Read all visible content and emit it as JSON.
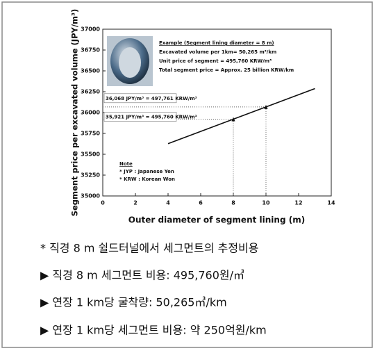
{
  "chart_data": {
    "type": "line",
    "x_label": "Outer diameter of segment lining (m)",
    "y_label": "Segment price per excavated volume (JPY/m³)",
    "series": [
      {
        "color": "#111111",
        "x": [
          4,
          8,
          10,
          13
        ],
        "values": [
          35627,
          35921,
          36068,
          36288
        ]
      }
    ],
    "xlim": [
      0,
      14
    ],
    "xticks": [
      0,
      2,
      4,
      6,
      8,
      10,
      12,
      14
    ],
    "ylim": [
      35000,
      37000
    ],
    "yticks": [
      35000,
      35250,
      35500,
      35750,
      36000,
      36250,
      36500,
      36750,
      37000
    ],
    "annotations": [
      "36,068 JPY/m³ = 497,761 KRW/m³",
      "35,921 JPY/m³ = 495,760 KRW/m³"
    ],
    "inset_title": "Example (Segment lining diameter = 8 m)",
    "inset_lines": [
      "Excavated volume per 1km= 50,265 m³/km",
      "Unit price of segment = 495,760 KRW/m³",
      "Total segment price = Approx. 25 billion KRW/km"
    ],
    "note_title": "Note",
    "note_lines": [
      "* JYP : Japanese Yen",
      "* KRW : Korean Won"
    ]
  },
  "notes": [
    "* 직경 8 m 쉴드터널에서 세그먼트의 추정비용",
    "▶ 직경 8 m 세그먼트 비용: 495,760원/㎥",
    "▶ 연장 1 km당 굴착량: 50,265㎥/km",
    "▶ 연장 1 km당 세그먼트 비용: 약 250억원/km"
  ]
}
